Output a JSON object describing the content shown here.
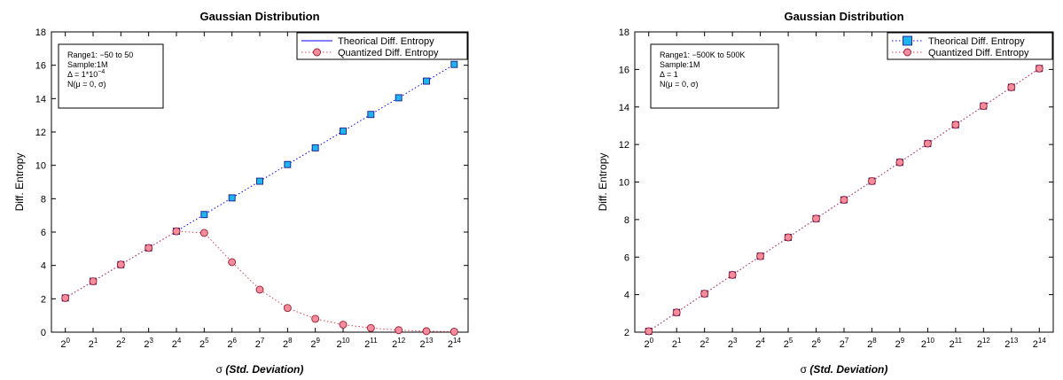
{
  "chart_data": [
    {
      "type": "line",
      "title": "Gaussian Distribution",
      "xlabel_symbol": "σ",
      "xlabel_text": "(Std. Deviation)",
      "ylabel": "Diff. Entropy",
      "xscale": "log2",
      "x": [
        1,
        2,
        4,
        8,
        16,
        32,
        64,
        128,
        256,
        512,
        1024,
        2048,
        4096,
        8192,
        16384
      ],
      "x_exponents": [
        "0",
        "1",
        "2",
        "3",
        "4",
        "5",
        "6",
        "7",
        "8",
        "9",
        "10",
        "11",
        "12",
        "13",
        "14"
      ],
      "x_tick_base": "2",
      "ylim": [
        0,
        18
      ],
      "yticks": [
        "0",
        "2",
        "4",
        "6",
        "8",
        "10",
        "12",
        "14",
        "16",
        "18"
      ],
      "grid": false,
      "legend_position": "top-right",
      "legend": [
        "Theorical Diff. Entropy",
        "Quantized Diff. Entropy"
      ],
      "annotation": [
        "Range1: −50 to 50",
        "Sample:1M",
        "Δ = 1*10",
        "N(μ = 0, σ)"
      ],
      "annotation_delta_exponent": "−4",
      "series": [
        {
          "name": "Theorical Diff. Entropy",
          "color": "#0000ff",
          "marker": "square",
          "marker_fill": "#1eb4f0",
          "values": [
            2.05,
            3.05,
            4.05,
            5.05,
            6.05,
            7.05,
            8.05,
            9.05,
            10.05,
            11.05,
            12.05,
            13.05,
            14.05,
            15.05,
            16.05
          ]
        },
        {
          "name": "Quantized Diff. Entropy",
          "color": "#e0405a",
          "marker": "circle",
          "marker_fill": "#f58c9c",
          "values": [
            2.05,
            3.05,
            4.05,
            5.05,
            6.05,
            5.95,
            4.2,
            2.55,
            1.45,
            0.8,
            0.45,
            0.25,
            0.12,
            0.06,
            0.03
          ]
        }
      ]
    },
    {
      "type": "line",
      "title": "Gaussian Distribution",
      "xlabel_symbol": "σ",
      "xlabel_text": "(Std. Deviation)",
      "ylabel": "Diff. Entropy",
      "xscale": "log2",
      "x": [
        1,
        2,
        4,
        8,
        16,
        32,
        64,
        128,
        256,
        512,
        1024,
        2048,
        4096,
        8192,
        16384
      ],
      "x_exponents": [
        "0",
        "1",
        "2",
        "3",
        "4",
        "5",
        "6",
        "7",
        "8",
        "9",
        "10",
        "11",
        "12",
        "13",
        "14"
      ],
      "x_tick_base": "2",
      "ylim": [
        2,
        18
      ],
      "yticks": [
        "2",
        "4",
        "6",
        "8",
        "10",
        "12",
        "14",
        "16",
        "18"
      ],
      "grid": false,
      "legend_position": "top-right",
      "legend": [
        "Theorical Diff. Entropy",
        "Quantized Diff. Entropy"
      ],
      "annotation": [
        "Range1: −500K to 500K",
        "Sample:1M",
        "Δ = 1",
        "N(μ = 0, σ)"
      ],
      "annotation_delta_exponent": "",
      "series": [
        {
          "name": "Theorical Diff. Entropy",
          "color": "#0000ff",
          "marker": "square",
          "marker_fill": "#1eb4f0",
          "values": [
            2.05,
            3.05,
            4.05,
            5.05,
            6.05,
            7.05,
            8.05,
            9.05,
            10.05,
            11.05,
            12.05,
            13.05,
            14.05,
            15.05,
            16.05
          ]
        },
        {
          "name": "Quantized Diff. Entropy",
          "color": "#e0405a",
          "marker": "circle",
          "marker_fill": "#f58c9c",
          "values": [
            2.05,
            3.05,
            4.05,
            5.05,
            6.05,
            7.05,
            8.05,
            9.05,
            10.05,
            11.05,
            12.05,
            13.05,
            14.05,
            15.05,
            16.05
          ]
        }
      ]
    }
  ]
}
